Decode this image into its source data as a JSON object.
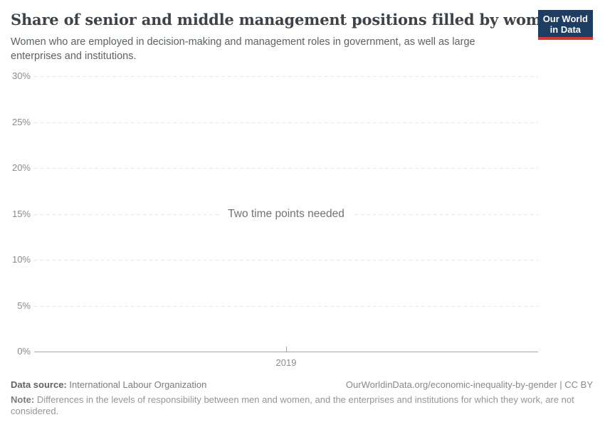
{
  "header": {
    "title": "Share of senior and middle management positions filled by women",
    "subtitle": "Women who are employed in decision-making and management roles in government, as well as large enterprises and institutions.",
    "logo": {
      "line1": "Our World",
      "line2": "in Data",
      "bg_color": "#1d3d63",
      "bar_color": "#e0362c"
    }
  },
  "chart_data": {
    "type": "line",
    "title": "Share of senior and middle management positions filled by women",
    "series": [],
    "x": [
      2019
    ],
    "xticks": [
      "2019"
    ],
    "yticks": [
      "0%",
      "5%",
      "10%",
      "15%",
      "20%",
      "25%",
      "30%"
    ],
    "ylim": [
      0,
      30
    ],
    "xlabel": "",
    "ylabel": "",
    "grid": "horizontal-dashed",
    "legend": "none",
    "annotation": "Two time points needed",
    "colors": {
      "gridline": "#e7e7e7",
      "axis": "#a5a5a5",
      "tick_label": "#8b8b8b"
    }
  },
  "footer": {
    "datasource_label": "Data source:",
    "datasource_value": "International Labour Organization",
    "license_text": "OurWorldinData.org/economic-inequality-by-gender | CC BY",
    "note_label": "Note:",
    "note_value": "Differences in the levels of responsibility between men and women, and the enterprises and institutions for which they work, are not considered."
  }
}
